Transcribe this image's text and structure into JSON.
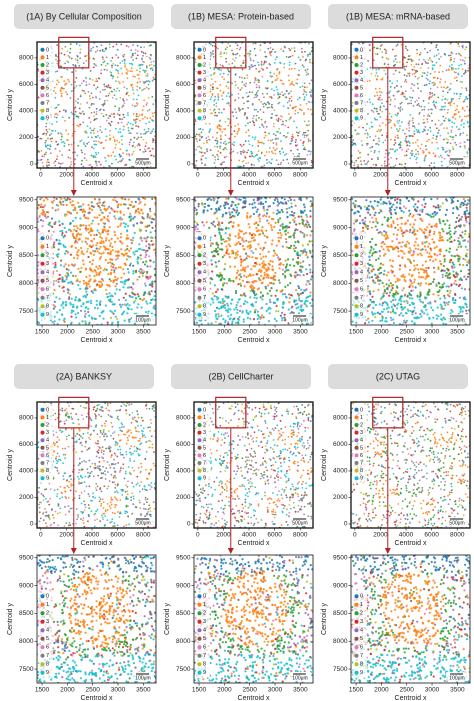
{
  "chart_data": [
    {
      "type": "scatter",
      "title": "(1A) By Cellular Composition",
      "xlabel": "Centroid x",
      "ylabel": "Centroid y",
      "xlim": [
        -300,
        9000
      ],
      "ylim": [
        -300,
        9200
      ],
      "xticks": [
        0,
        2000,
        4000,
        6000,
        8000
      ],
      "yticks": [
        0,
        2000,
        4000,
        6000,
        8000
      ],
      "categories": [
        "0",
        "1",
        "2",
        "3",
        "4",
        "5",
        "6",
        "7",
        "8",
        "9"
      ],
      "colors": [
        "#1f77b4",
        "#ff7f0e",
        "#2ca02c",
        "#d62728",
        "#9467bd",
        "#8c564b",
        "#e377c2",
        "#7f7f7f",
        "#bcbd22",
        "#17becf"
      ],
      "scale_bar": "500μm"
    },
    {
      "type": "scatter",
      "xlabel": "Centroid x",
      "ylabel": "Centroid y",
      "xlim": [
        1400,
        3750
      ],
      "ylim": [
        7250,
        9550
      ],
      "xticks": [
        1500,
        2000,
        2500,
        3000,
        3500
      ],
      "yticks": [
        7500,
        8000,
        8500,
        9000,
        9500
      ],
      "categories": [
        "0",
        "1",
        "2",
        "3",
        "4",
        "5",
        "6",
        "7",
        "8",
        "9"
      ],
      "colors": [
        "#1f77b4",
        "#ff7f0e",
        "#2ca02c",
        "#d62728",
        "#9467bd",
        "#8c564b",
        "#e377c2",
        "#7f7f7f",
        "#bcbd22",
        "#17becf"
      ],
      "scale_bar": "100μm"
    },
    {
      "type": "scatter",
      "title": "(1B) MESA: Protein-based",
      "xlabel": "Centroid x",
      "ylabel": "Centroid y",
      "xlim": [
        -300,
        9000
      ],
      "ylim": [
        -300,
        9200
      ],
      "xticks": [
        0,
        2000,
        4000,
        6000,
        8000
      ],
      "yticks": [
        0,
        2000,
        4000,
        6000,
        8000
      ],
      "categories": [
        "0",
        "1",
        "2",
        "3",
        "4",
        "5",
        "6",
        "7",
        "8",
        "9"
      ],
      "colors": [
        "#1f77b4",
        "#ff7f0e",
        "#2ca02c",
        "#d62728",
        "#9467bd",
        "#8c564b",
        "#e377c2",
        "#7f7f7f",
        "#bcbd22",
        "#17becf"
      ],
      "scale_bar": "500μm"
    },
    {
      "type": "scatter",
      "xlabel": "Centroid x",
      "ylabel": "Centroid y",
      "xlim": [
        1400,
        3750
      ],
      "ylim": [
        7250,
        9550
      ],
      "xticks": [
        1500,
        2000,
        2500,
        3000,
        3500
      ],
      "yticks": [
        7500,
        8000,
        8500,
        9000,
        9500
      ],
      "categories": [
        "0",
        "1",
        "2",
        "3",
        "4",
        "5",
        "6",
        "7",
        "8",
        "9"
      ],
      "colors": [
        "#1f77b4",
        "#ff7f0e",
        "#2ca02c",
        "#d62728",
        "#9467bd",
        "#8c564b",
        "#e377c2",
        "#7f7f7f",
        "#bcbd22",
        "#17becf"
      ],
      "scale_bar": "100μm"
    },
    {
      "type": "scatter",
      "title": "(1B) MESA: mRNA-based",
      "xlabel": "Centroid x",
      "ylabel": "Centroid y",
      "xlim": [
        -300,
        9000
      ],
      "ylim": [
        -300,
        9200
      ],
      "xticks": [
        0,
        2000,
        4000,
        6000,
        8000
      ],
      "yticks": [
        0,
        2000,
        4000,
        6000,
        8000
      ],
      "categories": [
        "0",
        "1",
        "2",
        "3",
        "4",
        "5",
        "6",
        "7",
        "8",
        "9"
      ],
      "colors": [
        "#1f77b4",
        "#ff7f0e",
        "#2ca02c",
        "#d62728",
        "#9467bd",
        "#8c564b",
        "#e377c2",
        "#7f7f7f",
        "#bcbd22",
        "#17becf"
      ],
      "scale_bar": "500μm"
    },
    {
      "type": "scatter",
      "xlabel": "Centroid x",
      "ylabel": "Centroid y",
      "xlim": [
        1400,
        3750
      ],
      "ylim": [
        7250,
        9550
      ],
      "xticks": [
        1500,
        2000,
        2500,
        3000,
        3500
      ],
      "yticks": [
        7500,
        8000,
        8500,
        9000,
        9500
      ],
      "categories": [
        "0",
        "1",
        "2",
        "3",
        "4",
        "5",
        "6",
        "7",
        "8",
        "9"
      ],
      "colors": [
        "#1f77b4",
        "#ff7f0e",
        "#2ca02c",
        "#d62728",
        "#9467bd",
        "#8c564b",
        "#e377c2",
        "#7f7f7f",
        "#bcbd22",
        "#17becf"
      ],
      "scale_bar": "100μm"
    },
    {
      "type": "scatter",
      "title": "(2A) BANKSY",
      "xlabel": "Centroid x",
      "ylabel": "Centroid y",
      "xlim": [
        -300,
        9000
      ],
      "ylim": [
        -300,
        9200
      ],
      "xticks": [
        0,
        2000,
        4000,
        6000,
        8000
      ],
      "yticks": [
        0,
        2000,
        4000,
        6000,
        8000
      ],
      "categories": [
        "0",
        "1",
        "2",
        "3",
        "4",
        "5",
        "6",
        "7",
        "8",
        "9"
      ],
      "colors": [
        "#1f77b4",
        "#ff7f0e",
        "#2ca02c",
        "#d62728",
        "#9467bd",
        "#8c564b",
        "#e377c2",
        "#7f7f7f",
        "#bcbd22",
        "#17becf"
      ],
      "scale_bar": "500μm"
    },
    {
      "type": "scatter",
      "xlabel": "Centroid x",
      "ylabel": "Centroid y",
      "xlim": [
        1400,
        3750
      ],
      "ylim": [
        7250,
        9550
      ],
      "xticks": [
        1500,
        2000,
        2500,
        3000,
        3500
      ],
      "yticks": [
        7500,
        8000,
        8500,
        9000,
        9500
      ],
      "categories": [
        "0",
        "1",
        "2",
        "3",
        "4",
        "5",
        "6",
        "7",
        "8",
        "9"
      ],
      "colors": [
        "#1f77b4",
        "#ff7f0e",
        "#2ca02c",
        "#d62728",
        "#9467bd",
        "#8c564b",
        "#e377c2",
        "#7f7f7f",
        "#bcbd22",
        "#17becf"
      ],
      "scale_bar": "100μm"
    },
    {
      "type": "scatter",
      "title": "(2B) CellCharter",
      "xlabel": "Centroid x",
      "ylabel": "Centroid y",
      "xlim": [
        -300,
        9000
      ],
      "ylim": [
        -300,
        9200
      ],
      "xticks": [
        0,
        2000,
        4000,
        6000,
        8000
      ],
      "yticks": [
        0,
        2000,
        4000,
        6000,
        8000
      ],
      "categories": [
        "0",
        "1",
        "2",
        "3",
        "4",
        "5",
        "6",
        "7",
        "8",
        "9"
      ],
      "colors": [
        "#1f77b4",
        "#ff7f0e",
        "#2ca02c",
        "#d62728",
        "#9467bd",
        "#8c564b",
        "#e377c2",
        "#7f7f7f",
        "#bcbd22",
        "#17becf"
      ],
      "scale_bar": "500μm"
    },
    {
      "type": "scatter",
      "xlabel": "Centroid x",
      "ylabel": "Centroid y",
      "xlim": [
        1400,
        3750
      ],
      "ylim": [
        7250,
        9550
      ],
      "xticks": [
        1500,
        2000,
        2500,
        3000,
        3500
      ],
      "yticks": [
        7500,
        8000,
        8500,
        9000,
        9500
      ],
      "categories": [
        "0",
        "1",
        "2",
        "3",
        "4",
        "5",
        "6",
        "7",
        "8",
        "9"
      ],
      "colors": [
        "#1f77b4",
        "#ff7f0e",
        "#2ca02c",
        "#d62728",
        "#9467bd",
        "#8c564b",
        "#e377c2",
        "#7f7f7f",
        "#bcbd22",
        "#17becf"
      ],
      "scale_bar": "100μm"
    },
    {
      "type": "scatter",
      "title": "(2C) UTAG",
      "xlabel": "Centroid x",
      "ylabel": "Centroid y",
      "xlim": [
        -300,
        9000
      ],
      "ylim": [
        -300,
        9200
      ],
      "xticks": [
        0,
        2000,
        4000,
        6000,
        8000
      ],
      "yticks": [
        0,
        2000,
        4000,
        6000,
        8000
      ],
      "categories": [
        "0",
        "1",
        "2",
        "3",
        "4",
        "5",
        "6",
        "7",
        "8",
        "9"
      ],
      "colors": [
        "#1f77b4",
        "#ff7f0e",
        "#2ca02c",
        "#d62728",
        "#9467bd",
        "#8c564b",
        "#e377c2",
        "#7f7f7f",
        "#bcbd22",
        "#17becf"
      ],
      "scale_bar": "500μm"
    },
    {
      "type": "scatter",
      "xlabel": "Centroid x",
      "ylabel": "Centroid y",
      "xlim": [
        1400,
        3750
      ],
      "ylim": [
        7250,
        9550
      ],
      "xticks": [
        1500,
        2000,
        2500,
        3000,
        3500
      ],
      "yticks": [
        7500,
        8000,
        8500,
        9000,
        9500
      ],
      "categories": [
        "0",
        "1",
        "2",
        "3",
        "4",
        "5",
        "6",
        "7",
        "8",
        "9"
      ],
      "colors": [
        "#1f77b4",
        "#ff7f0e",
        "#2ca02c",
        "#d62728",
        "#9467bd",
        "#8c564b",
        "#e377c2",
        "#7f7f7f",
        "#bcbd22",
        "#17becf"
      ],
      "scale_bar": "100μm"
    }
  ]
}
